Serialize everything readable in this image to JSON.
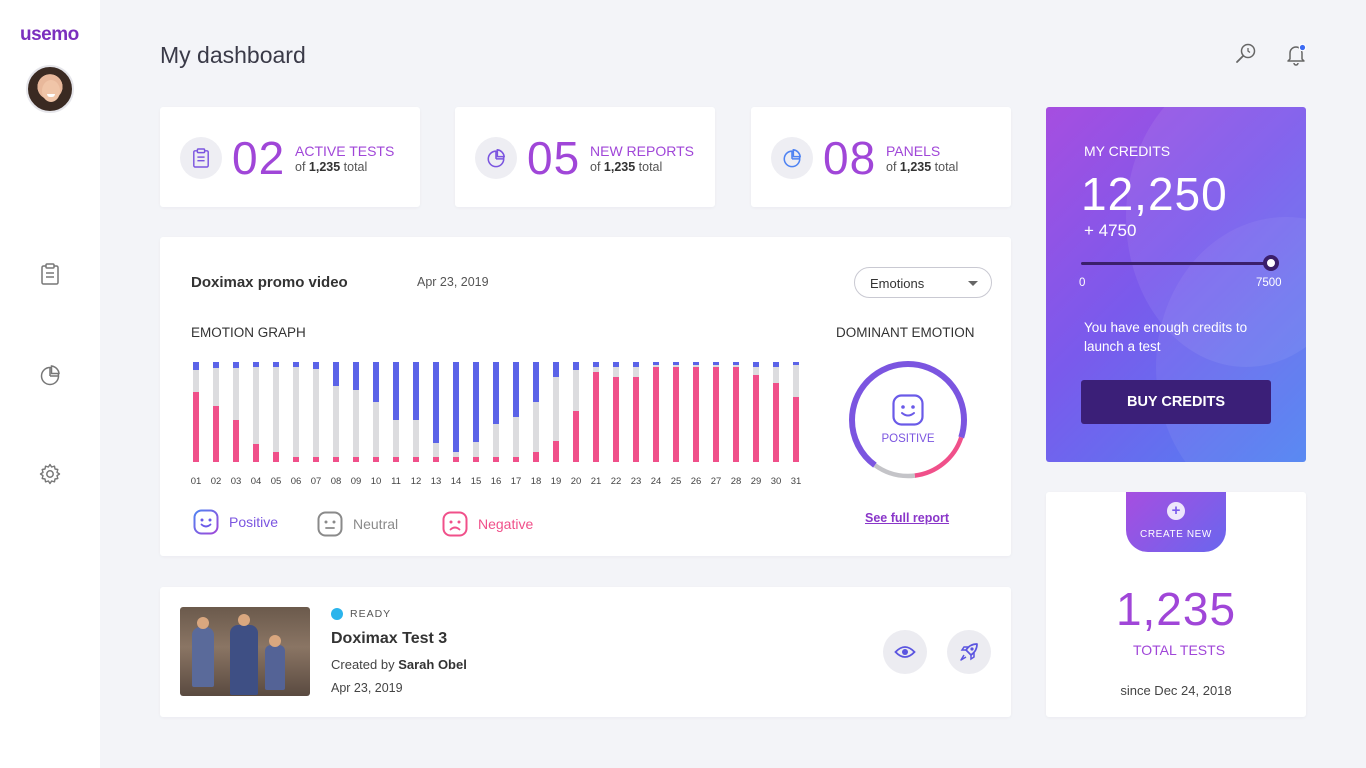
{
  "app": {
    "logo": "usemo",
    "page_title": "My dashboard"
  },
  "sidebar": {
    "items": [
      {
        "icon": "clipboard-icon"
      },
      {
        "icon": "pie-chart-icon"
      },
      {
        "icon": "gear-icon"
      }
    ]
  },
  "header": {
    "icons": [
      "search-icon",
      "bell-icon"
    ],
    "notification_dot_color": "#3d6bf2"
  },
  "stats": [
    {
      "number": "02",
      "label": "ACTIVE TESTS",
      "of": "of ",
      "total": "1,235",
      "suffix": " total",
      "icon": "clipboard-icon"
    },
    {
      "number": "05",
      "label": "NEW REPORTS",
      "of": "of ",
      "total": "1,235",
      "suffix": " total",
      "icon": "pie-chart-icon"
    },
    {
      "number": "08",
      "label": "PANELS",
      "of": "of ",
      "total": "1,235",
      "suffix": " total",
      "icon": "pie-chart-icon"
    }
  ],
  "emotion_card": {
    "title": "Doximax promo video",
    "date": "Apr 23, 2019",
    "select_value": "Emotions",
    "graph_label": "EMOTION GRAPH",
    "dominant_label": "DOMINANT EMOTION",
    "dominant_value": "POSITIVE",
    "legend": [
      {
        "label": "Positive",
        "color": "#7b55e0"
      },
      {
        "label": "Neutral",
        "color": "#8a8a8a"
      },
      {
        "label": "Negative",
        "color": "#f0508a"
      }
    ],
    "see_full_report": "See full report"
  },
  "chart_data": {
    "type": "bar",
    "stacked": true,
    "categories": [
      "01",
      "02",
      "03",
      "04",
      "05",
      "06",
      "07",
      "08",
      "09",
      "10",
      "11",
      "12",
      "13",
      "14",
      "15",
      "16",
      "17",
      "18",
      "19",
      "20",
      "21",
      "22",
      "23",
      "24",
      "25",
      "26",
      "27",
      "28",
      "29",
      "30",
      "31"
    ],
    "series": [
      {
        "name": "Negative",
        "color": "#f0508a",
        "values": [
          0.7,
          0.56,
          0.42,
          0.18,
          0.1,
          0.05,
          0.05,
          0.05,
          0.05,
          0.05,
          0.05,
          0.05,
          0.05,
          0.05,
          0.05,
          0.05,
          0.05,
          0.1,
          0.21,
          0.51,
          0.9,
          0.85,
          0.85,
          0.95,
          0.95,
          0.95,
          0.95,
          0.95,
          0.87,
          0.79,
          0.65
        ]
      },
      {
        "name": "Neutral",
        "color": "#dcdcdf",
        "values": [
          0.22,
          0.38,
          0.52,
          0.77,
          0.85,
          0.9,
          0.88,
          0.71,
          0.67,
          0.55,
          0.37,
          0.37,
          0.14,
          0.05,
          0.15,
          0.33,
          0.4,
          0.5,
          0.64,
          0.41,
          0.05,
          0.1,
          0.1,
          0.02,
          0.02,
          0.02,
          0.02,
          0.02,
          0.08,
          0.16,
          0.32
        ]
      },
      {
        "name": "Positive",
        "color": "#5b63e8",
        "values": [
          0.08,
          0.06,
          0.06,
          0.05,
          0.05,
          0.05,
          0.07,
          0.24,
          0.28,
          0.4,
          0.58,
          0.58,
          0.81,
          0.9,
          0.8,
          0.62,
          0.55,
          0.4,
          0.15,
          0.08,
          0.05,
          0.05,
          0.05,
          0.03,
          0.03,
          0.03,
          0.03,
          0.03,
          0.05,
          0.05,
          0.03
        ]
      }
    ],
    "ylim": [
      0,
      1
    ]
  },
  "dominant_donut": {
    "segments": [
      {
        "name": "Positive",
        "value": 0.7,
        "color": "#7b55e0"
      },
      {
        "name": "Negative",
        "value": 0.18,
        "color": "#f0508a"
      },
      {
        "name": "Neutral",
        "value": 0.12,
        "color": "#c4c4c8"
      }
    ]
  },
  "test_item": {
    "status": "READY",
    "status_color": "#2bb4ec",
    "title": "Doximax Test 3",
    "created_prefix": "Created by ",
    "author": "Sarah Obel",
    "date": "Apr 23, 2019",
    "actions": [
      "eye-icon",
      "rocket-icon"
    ]
  },
  "credits": {
    "label": "MY CREDITS",
    "value": "12,250",
    "added": "+ 4750",
    "slider_min": "0",
    "slider_max": "7500",
    "slider_level": 1.0,
    "message": "You have enough credits to launch a test",
    "button": "BUY CREDITS"
  },
  "totals": {
    "create_label": "CREATE NEW",
    "value": "1,235",
    "label": "TOTAL TESTS",
    "since": "since Dec 24, 2018"
  }
}
